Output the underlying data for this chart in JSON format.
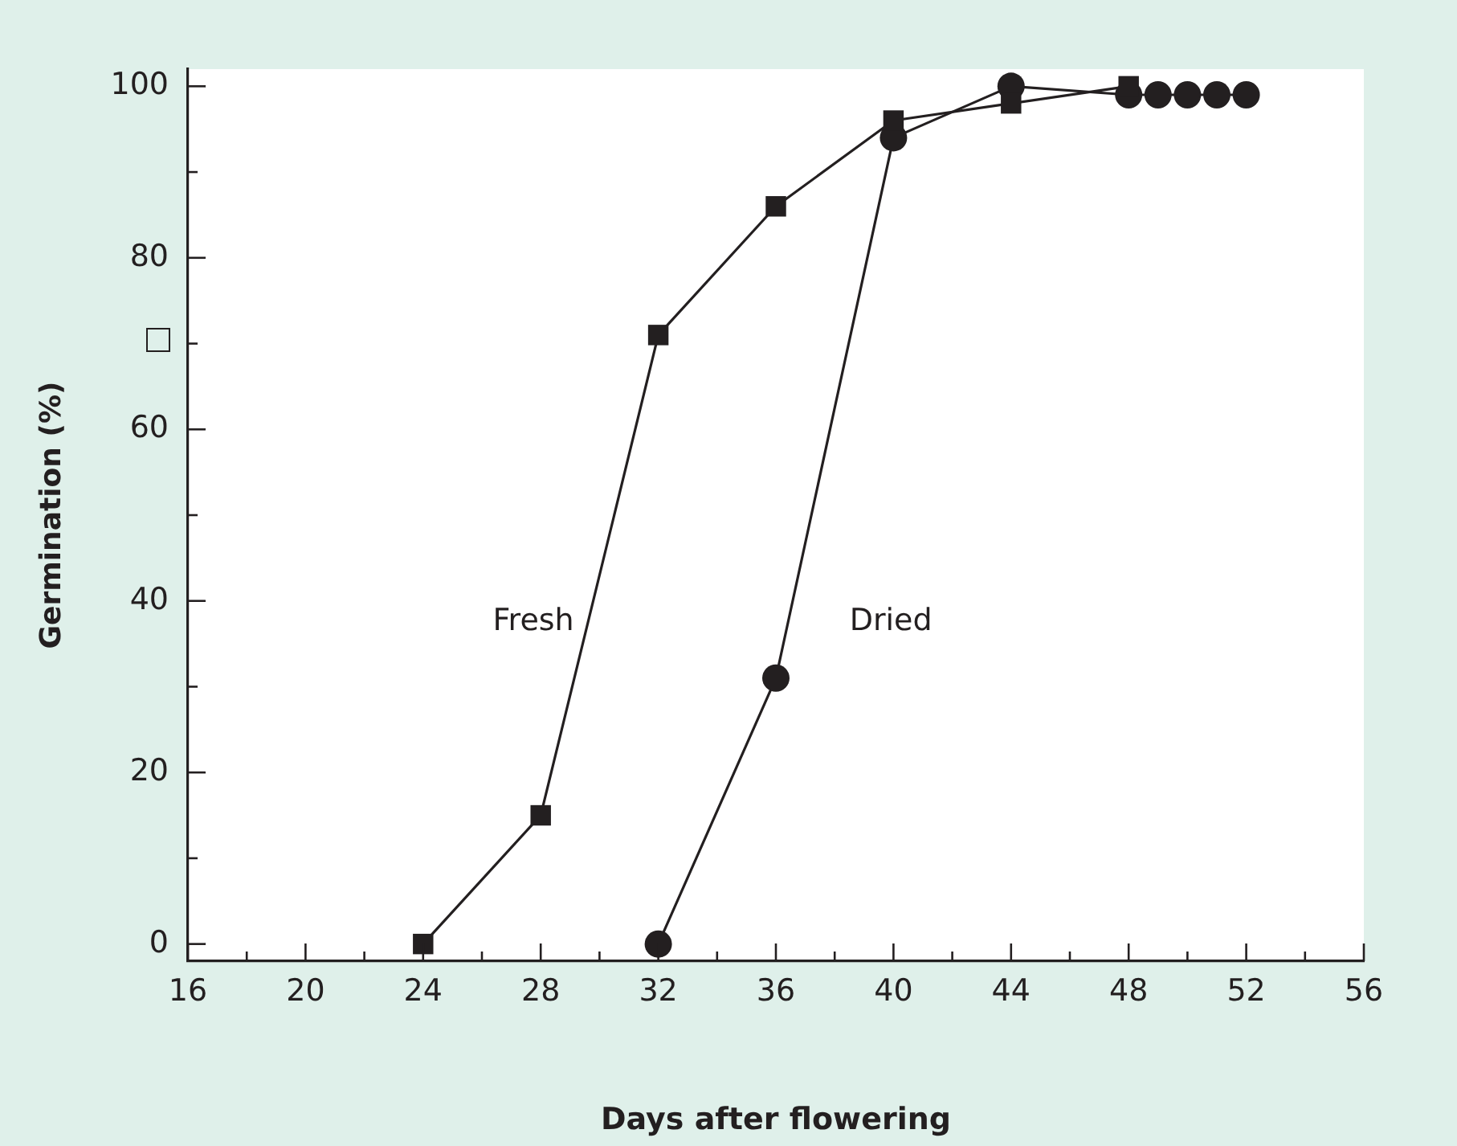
{
  "chart_data": {
    "type": "line",
    "xlabel": "Days after flowering",
    "ylabel": "Germination (%)",
    "xlim": [
      16,
      56
    ],
    "xticks": [
      16,
      {
        "value": 18,
        "label": null
      },
      20,
      {
        "value": 22,
        "label": null
      },
      24,
      {
        "value": 26,
        "label": null
      },
      28,
      {
        "value": 30,
        "label": null
      },
      32,
      {
        "value": 34,
        "label": null
      },
      36,
      {
        "value": 38,
        "label": null
      },
      40,
      {
        "value": 42,
        "label": null
      },
      44,
      {
        "value": 46,
        "label": null
      },
      48,
      {
        "value": 50,
        "label": null
      },
      52,
      {
        "value": 54,
        "label": null
      },
      56
    ],
    "ylim": [
      -2,
      102
    ],
    "yticks": [
      0,
      {
        "value": 10,
        "label": null
      },
      20,
      {
        "value": 30,
        "label": null
      },
      40,
      {
        "value": 50,
        "label": null
      },
      60,
      {
        "value": 70,
        "label": null
      },
      80,
      {
        "value": 90,
        "label": null
      },
      100
    ],
    "series": [
      {
        "name": "Fresh",
        "color": "#231f20",
        "marker": "square",
        "x": [
          24,
          28,
          32,
          36,
          40,
          44,
          48
        ],
        "values": [
          0,
          15,
          71,
          86,
          96,
          98,
          100
        ]
      },
      {
        "name": "Dried",
        "color": "#231f20",
        "marker": "circle",
        "x": [
          32,
          36,
          40,
          44,
          48,
          49,
          50,
          51,
          52
        ],
        "values": [
          0,
          31,
          94,
          100,
          99,
          99,
          99,
          99,
          99
        ]
      }
    ],
    "grid": false,
    "legend": false
  }
}
